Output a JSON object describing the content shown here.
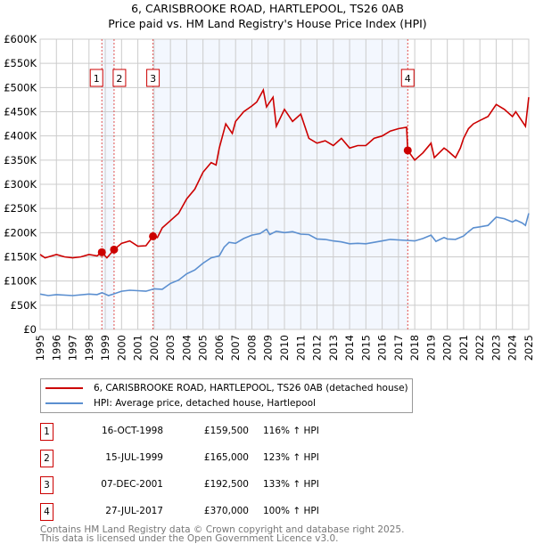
{
  "title": "6, CARISBROOKE ROAD, HARTLEPOOL, TS26 0AB",
  "subtitle": "Price paid vs. HM Land Registry's House Price Index (HPI)",
  "chart_data": {
    "type": "line",
    "title": "6, CARISBROOKE ROAD, HARTLEPOOL, TS26 0AB - Price paid vs. HM Land Registry's House Price Index (HPI)",
    "xlim": [
      1995,
      2025
    ],
    "ylim": [
      0,
      600000
    ],
    "y_ticks": [
      0,
      50000,
      100000,
      150000,
      200000,
      250000,
      300000,
      350000,
      400000,
      450000,
      500000,
      550000,
      600000
    ],
    "y_tick_labels": [
      "£0",
      "£50K",
      "£100K",
      "£150K",
      "£200K",
      "£250K",
      "£300K",
      "£350K",
      "£400K",
      "£450K",
      "£500K",
      "£550K",
      "£600K"
    ],
    "x_ticks": [
      "1995",
      "1996",
      "1997",
      "1998",
      "1999",
      "2000",
      "2001",
      "2002",
      "2003",
      "2004",
      "2005",
      "2006",
      "2007",
      "2008",
      "2009",
      "2010",
      "2011",
      "2012",
      "2013",
      "2014",
      "2015",
      "2016",
      "2017",
      "2018",
      "2019",
      "2020",
      "2021",
      "2022",
      "2023",
      "2024",
      "2025"
    ],
    "grid": true,
    "legend_placement": "below",
    "series": [
      {
        "name": "6, CARISBROOKE ROAD, HARTLEPOOL, TS26 0AB (detached house)",
        "color": "#cc0000",
        "x": [
          1995,
          1995.3,
          1996,
          1996.5,
          1997,
          1997.5,
          1998,
          1998.5,
          1998.79,
          1999.1,
          1999.54,
          2000,
          2000.5,
          2001,
          2001.5,
          2001.93,
          2002.2,
          2002.5,
          2003,
          2003.5,
          2004,
          2004.5,
          2005,
          2005.5,
          2005.8,
          2006,
          2006.4,
          2006.8,
          2007,
          2007.5,
          2008,
          2008.3,
          2008.7,
          2008.9,
          2009.3,
          2009.5,
          2010,
          2010.5,
          2011,
          2011.5,
          2012,
          2012.5,
          2013,
          2013.5,
          2014,
          2014.5,
          2015,
          2015.5,
          2016,
          2016.5,
          2017,
          2017.5,
          2017.57,
          2018,
          2018.5,
          2019,
          2019.2,
          2019.8,
          2020,
          2020.5,
          2020.8,
          2021,
          2021.3,
          2021.6,
          2022,
          2022.5,
          2023,
          2023.5,
          2024,
          2024.2,
          2024.6,
          2024.8,
          2025
        ],
        "y": [
          155000,
          148000,
          155000,
          150000,
          148000,
          150000,
          155000,
          152000,
          159500,
          148000,
          165000,
          178000,
          183000,
          172000,
          173000,
          192500,
          190000,
          210000,
          225000,
          240000,
          270000,
          290000,
          325000,
          345000,
          340000,
          375000,
          425000,
          405000,
          430000,
          450000,
          462000,
          470000,
          495000,
          460000,
          480000,
          420000,
          455000,
          430000,
          445000,
          395000,
          385000,
          390000,
          380000,
          395000,
          375000,
          380000,
          380000,
          395000,
          400000,
          410000,
          415000,
          418000,
          370000,
          350000,
          365000,
          385000,
          355000,
          375000,
          370000,
          355000,
          375000,
          395000,
          415000,
          425000,
          432000,
          440000,
          465000,
          455000,
          440000,
          450000,
          430000,
          420000,
          480000
        ]
      },
      {
        "name": "HPI: Average price, detached house, Hartlepool",
        "color": "#5b8fd0",
        "x": [
          1995,
          1995.5,
          1996,
          1997,
          1998,
          1998.5,
          1998.8,
          1999.2,
          1999.5,
          2000,
          2000.5,
          2001,
          2001.5,
          2002,
          2002.5,
          2003,
          2003.5,
          2004,
          2004.5,
          2005,
          2005.5,
          2006,
          2006.3,
          2006.6,
          2007,
          2007.5,
          2008,
          2008.5,
          2008.9,
          2009.1,
          2009.5,
          2010,
          2010.5,
          2011,
          2011.5,
          2012,
          2012.5,
          2013,
          2013.5,
          2014,
          2014.5,
          2015,
          2015.5,
          2016,
          2016.5,
          2017,
          2017.5,
          2018,
          2018.5,
          2019,
          2019.3,
          2019.8,
          2020,
          2020.5,
          2021,
          2021.3,
          2021.6,
          2022,
          2022.5,
          2023,
          2023.5,
          2024,
          2024.2,
          2024.6,
          2024.8,
          2025
        ],
        "y": [
          73000,
          70000,
          72000,
          70000,
          73000,
          72000,
          76000,
          70000,
          73000,
          79000,
          81000,
          80000,
          79000,
          84000,
          83000,
          95000,
          102000,
          115000,
          123000,
          137000,
          148000,
          152000,
          170000,
          180000,
          178000,
          188000,
          195000,
          198000,
          207000,
          196000,
          203000,
          200000,
          202000,
          197000,
          196000,
          187000,
          186000,
          183000,
          181000,
          177000,
          178000,
          177000,
          180000,
          183000,
          186000,
          185000,
          184000,
          183000,
          188000,
          195000,
          182000,
          190000,
          187000,
          186000,
          193000,
          202000,
          210000,
          212000,
          215000,
          232000,
          229000,
          222000,
          226000,
          220000,
          215000,
          240000
        ]
      }
    ],
    "shaded_ranges": [
      [
        1998.79,
        1999.54
      ],
      [
        2001.93,
        2017.57
      ]
    ],
    "annotations": [
      {
        "label": "1",
        "x": 1998.79,
        "y": 159500
      },
      {
        "label": "2",
        "x": 1999.54,
        "y": 165000
      },
      {
        "label": "3",
        "x": 2001.93,
        "y": 192500
      },
      {
        "label": "4",
        "x": 2017.57,
        "y": 370000
      }
    ]
  },
  "legend": [
    {
      "label": "6, CARISBROOKE ROAD, HARTLEPOOL, TS26 0AB (detached house)",
      "color": "#cc0000"
    },
    {
      "label": "HPI: Average price, detached house, Hartlepool",
      "color": "#5b8fd0"
    }
  ],
  "sales": [
    {
      "num": "1",
      "date": "16-OCT-1998",
      "price": "£159,500",
      "hpi": "116% ↑ HPI"
    },
    {
      "num": "2",
      "date": "15-JUL-1999",
      "price": "£165,000",
      "hpi": "123% ↑ HPI"
    },
    {
      "num": "3",
      "date": "07-DEC-2001",
      "price": "£192,500",
      "hpi": "133% ↑ HPI"
    },
    {
      "num": "4",
      "date": "27-JUL-2017",
      "price": "£370,000",
      "hpi": "100% ↑ HPI"
    }
  ],
  "footer": {
    "line1": "Contains HM Land Registry data © Crown copyright and database right 2025.",
    "line2": "This data is licensed under the Open Government Licence v3.0."
  }
}
